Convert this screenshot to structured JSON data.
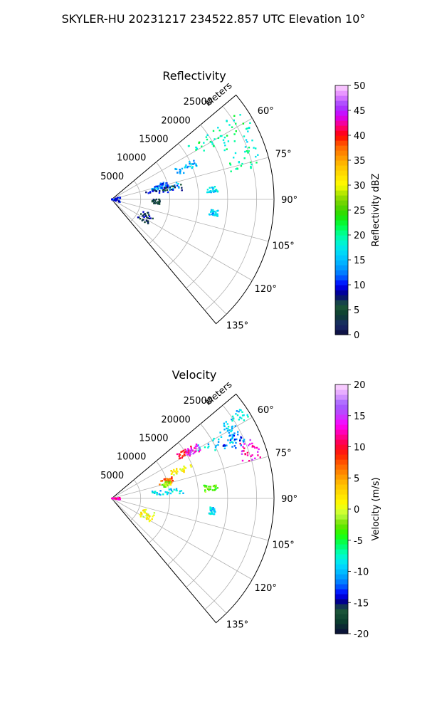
{
  "figure_title": "SKYLER-HU  20231217  234522.857 UTC Elevation 10°",
  "chart_data": [
    {
      "type": "heatmap",
      "subtype": "polar-sector (PPI)",
      "title": "Reflectivity",
      "range_label": "Meters",
      "range_ticks": [
        5000,
        10000,
        15000,
        20000,
        25000
      ],
      "range_max": 28000,
      "azimuth_range_deg": [
        50,
        140
      ],
      "azimuth_tick_labels": [
        "60°",
        "75°",
        "90°",
        "105°",
        "120°",
        "135°"
      ],
      "grid": true,
      "colorbar": {
        "label": "Reflectivity dBZ",
        "min": 0,
        "max": 50,
        "ticks": [
          0,
          5,
          10,
          15,
          20,
          25,
          30,
          35,
          40,
          45,
          50
        ]
      },
      "echo_regions": [
        {
          "az": [
            55,
            63
          ],
          "range_m": [
            16000,
            27500
          ],
          "value": 20
        },
        {
          "az": [
            62,
            78
          ],
          "range_m": [
            21000,
            27000
          ],
          "value": 19
        },
        {
          "az": [
            64,
            70
          ],
          "range_m": [
            12000,
            16000
          ],
          "value": 15
        },
        {
          "az": [
            72,
            78
          ],
          "range_m": [
            7500,
            10000
          ],
          "value": 11
        },
        {
          "az": [
            75,
            81
          ],
          "range_m": [
            7000,
            12000
          ],
          "value": 15
        },
        {
          "az": [
            83,
            86
          ],
          "range_m": [
            16500,
            18500
          ],
          "value": 16
        },
        {
          "az": [
            77,
            83
          ],
          "range_m": [
            6000,
            12500
          ],
          "value": 8
        },
        {
          "az": [
            90,
            96
          ],
          "range_m": [
            7000,
            8500
          ],
          "value": 5
        },
        {
          "az": [
            110,
            125
          ],
          "range_m": [
            5500,
            8000
          ],
          "value": 7
        },
        {
          "az": [
            75,
            118
          ],
          "range_m": [
            0,
            1500
          ],
          "value": 10
        },
        {
          "az": [
            96,
            99
          ],
          "range_m": [
            17000,
            18500
          ],
          "value": 15
        }
      ]
    },
    {
      "type": "heatmap",
      "subtype": "polar-sector (PPI)",
      "title": "Velocity",
      "range_label": "Meters",
      "range_ticks": [
        5000,
        10000,
        15000,
        20000,
        25000
      ],
      "range_max": 28000,
      "azimuth_range_deg": [
        50,
        140
      ],
      "azimuth_tick_labels": [
        "60°",
        "75°",
        "90°",
        "105°",
        "120°",
        "135°"
      ],
      "grid": true,
      "colorbar": {
        "label": "Velocity (m/s)",
        "min": -20,
        "max": 20,
        "ticks": [
          -20,
          -15,
          -10,
          -5,
          0,
          5,
          10,
          15,
          20
        ]
      },
      "echo_regions": [
        {
          "az": [
            55,
            60
          ],
          "range_m": [
            23000,
            27500
          ],
          "value": -9
        },
        {
          "az": [
            58,
            66
          ],
          "range_m": [
            17000,
            24000
          ],
          "value": -9
        },
        {
          "az": [
            56,
            60
          ],
          "range_m": [
            13500,
            16500
          ],
          "value": 10
        },
        {
          "az": [
            57,
            62
          ],
          "range_m": [
            15000,
            17500
          ],
          "value": 14
        },
        {
          "az": [
            62,
            68
          ],
          "range_m": [
            21000,
            25000
          ],
          "value": -12
        },
        {
          "az": [
            66,
            75
          ],
          "range_m": [
            23500,
            27000
          ],
          "value": 13
        },
        {
          "az": [
            65,
            70
          ],
          "range_m": [
            11000,
            15000
          ],
          "value": 1
        },
        {
          "az": [
            70,
            77
          ],
          "range_m": [
            8500,
            11000
          ],
          "value": 7
        },
        {
          "az": [
            73,
            78
          ],
          "range_m": [
            9000,
            10500
          ],
          "value": -1
        },
        {
          "az": [
            80,
            86
          ],
          "range_m": [
            7000,
            12500
          ],
          "value": -9
        },
        {
          "az": [
            82,
            86
          ],
          "range_m": [
            16000,
            18500
          ],
          "value": -3
        },
        {
          "az": [
            85,
            100
          ],
          "range_m": [
            0,
            1500
          ],
          "value": 12
        },
        {
          "az": [
            108,
            122
          ],
          "range_m": [
            5500,
            8000
          ],
          "value": 1
        },
        {
          "az": [
            95,
            99
          ],
          "range_m": [
            17000,
            18000
          ],
          "value": -9
        }
      ]
    }
  ]
}
